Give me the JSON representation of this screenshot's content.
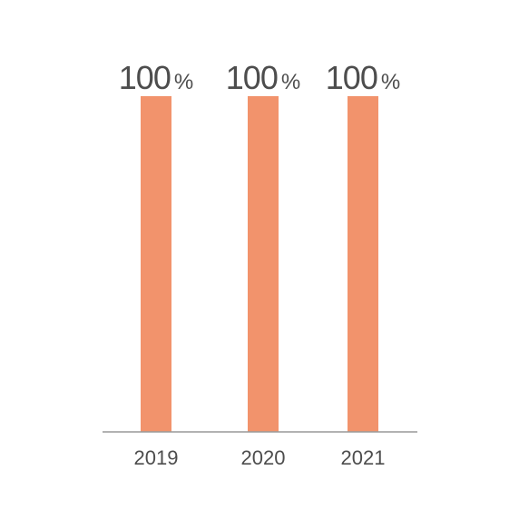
{
  "chart_data": {
    "type": "bar",
    "title": "",
    "xlabel": "",
    "ylabel": "",
    "categories": [
      "2019",
      "2020",
      "2021"
    ],
    "values": [
      100,
      100,
      100
    ],
    "value_labels": [
      "100",
      "100",
      "100"
    ],
    "value_unit": "%",
    "ylim": [
      0,
      100
    ],
    "grid": false,
    "legend": "none",
    "bar_color": "#f2936c",
    "axis_color": "#999999",
    "text_color": "#4d4d4d"
  }
}
